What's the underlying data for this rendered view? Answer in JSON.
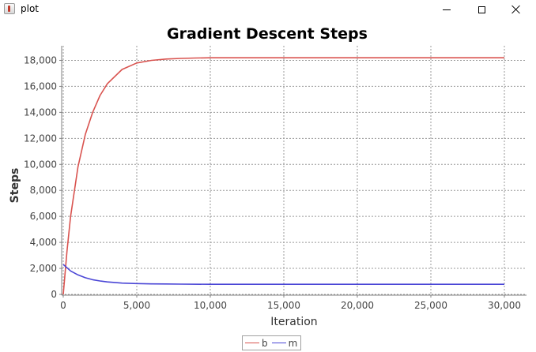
{
  "window": {
    "title": "plot",
    "icon": "java-icon",
    "controls": {
      "minimize": "minimize-icon",
      "maximize": "maximize-icon",
      "close": "close-icon"
    }
  },
  "chart_data": {
    "type": "line",
    "title": "Gradient Descent Steps",
    "xlabel": "Iteration",
    "ylabel": "Steps",
    "xlim": [
      0,
      30000
    ],
    "ylim": [
      0,
      19000
    ],
    "xticks": [
      0,
      5000,
      10000,
      15000,
      20000,
      25000,
      30000
    ],
    "xtick_labels": [
      "0",
      "5,000",
      "10,000",
      "15,000",
      "20,000",
      "25,000",
      "30,000"
    ],
    "yticks": [
      0,
      2000,
      4000,
      6000,
      8000,
      10000,
      12000,
      14000,
      16000,
      18000
    ],
    "ytick_labels": [
      "0",
      "2,000",
      "4,000",
      "6,000",
      "8,000",
      "10,000",
      "12,000",
      "14,000",
      "16,000",
      "18,000"
    ],
    "grid": true,
    "legend": "bottom-center",
    "series": [
      {
        "name": "b",
        "color": "#d9534f",
        "x": [
          0,
          250,
          500,
          1000,
          1500,
          2000,
          2500,
          3000,
          4000,
          5000,
          6000,
          7000,
          8000,
          9000,
          10000,
          15000,
          20000,
          25000,
          30000
        ],
        "y": [
          0,
          3300,
          6000,
          9800,
          12300,
          14000,
          15300,
          16200,
          17300,
          17800,
          18000,
          18100,
          18150,
          18180,
          18200,
          18200,
          18200,
          18200,
          18200
        ]
      },
      {
        "name": "m",
        "color": "#4a46d6",
        "x": [
          0,
          250,
          500,
          1000,
          1500,
          2000,
          2500,
          3000,
          4000,
          5000,
          6000,
          7000,
          8000,
          10000,
          15000,
          20000,
          25000,
          30000
        ],
        "y": [
          2300,
          2050,
          1800,
          1500,
          1280,
          1130,
          1030,
          960,
          870,
          830,
          810,
          800,
          790,
          780,
          780,
          780,
          780,
          780
        ]
      }
    ]
  }
}
